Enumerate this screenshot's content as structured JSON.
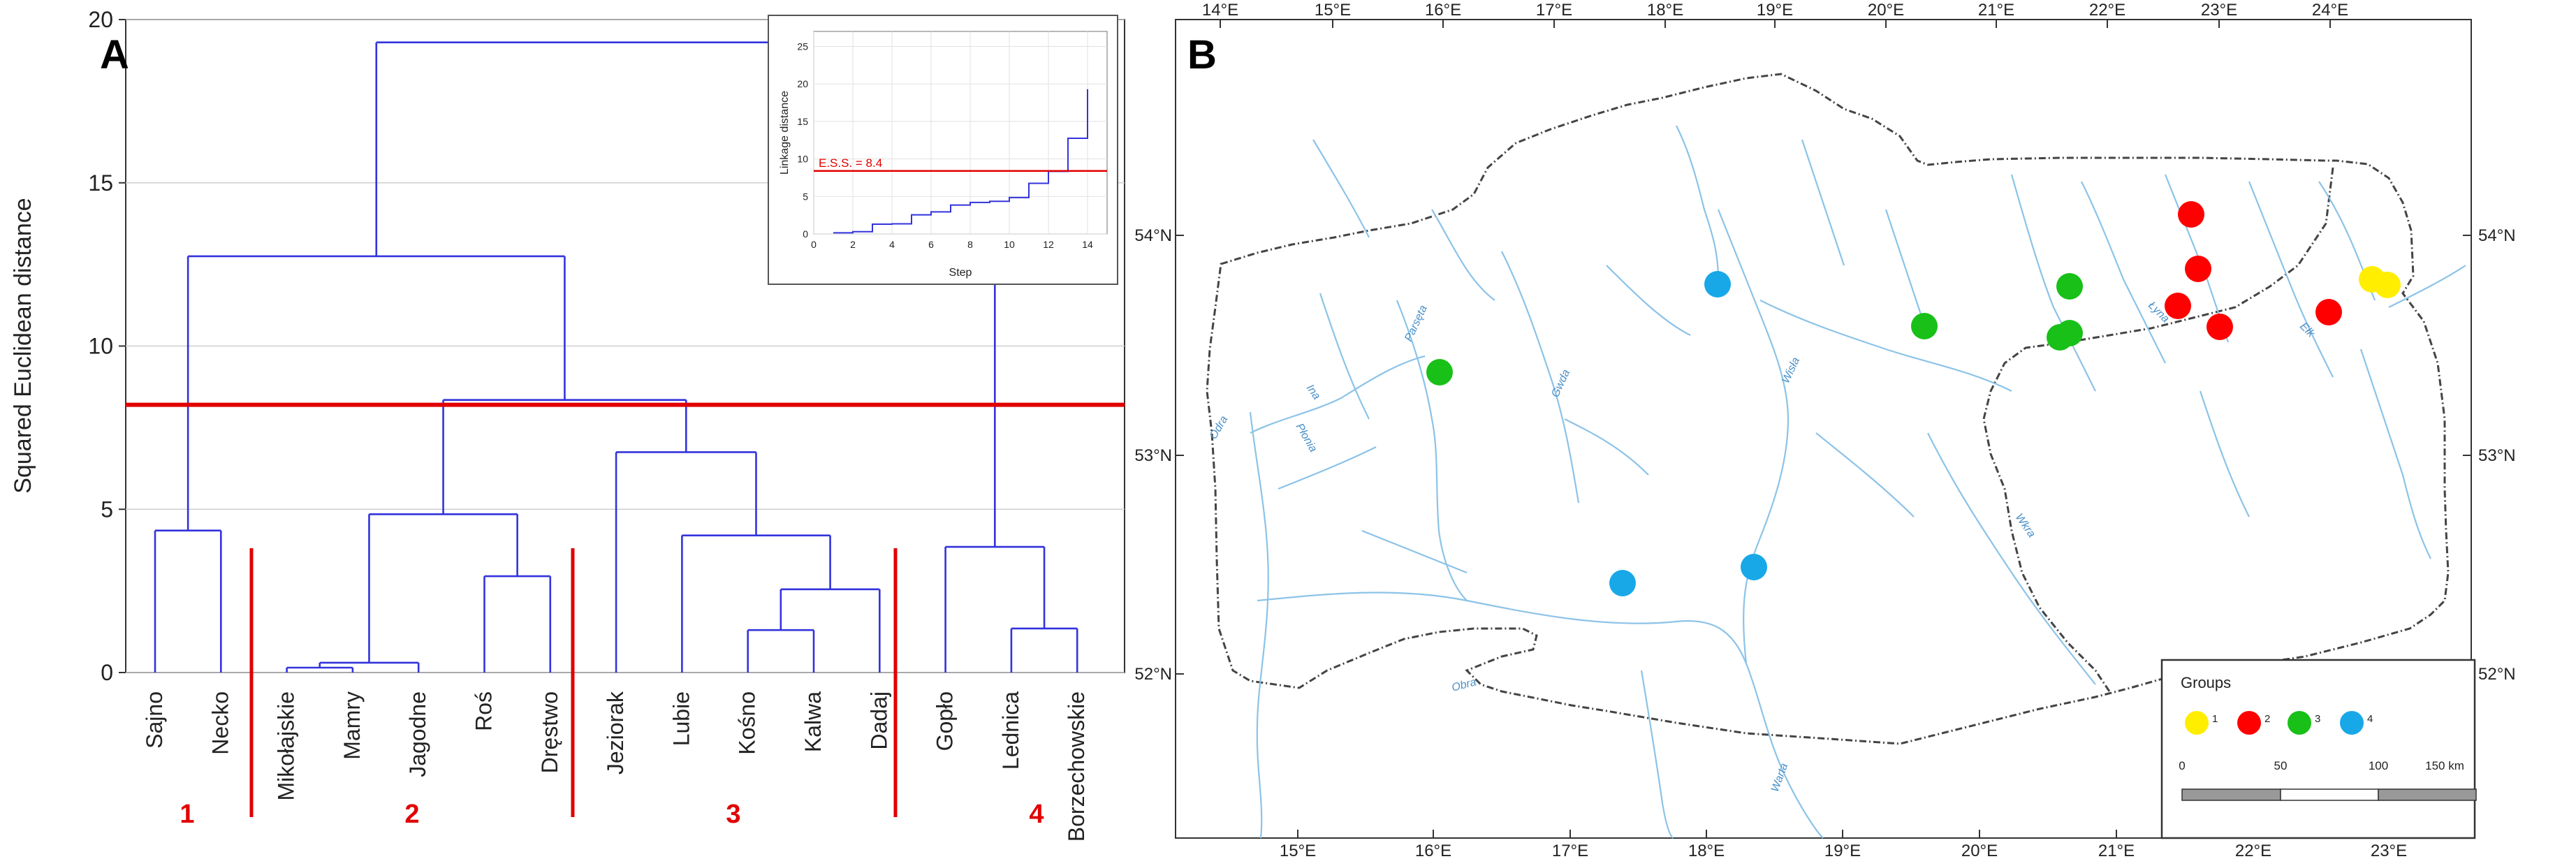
{
  "panel_a": {
    "letter": "A",
    "ylabel": "Squared Euclidean distance",
    "yticks": [
      "0",
      "5",
      "10",
      "15",
      "20"
    ],
    "leaves": [
      "Sajno",
      "Necko",
      "Mikołajskie",
      "Mamry",
      "Jagodne",
      "Roś",
      "Dręstwo",
      "Jeziorak",
      "Lubie",
      "Kośno",
      "Kalwa",
      "Dadaj",
      "Gopło",
      "Lednica",
      "Borzechowskie"
    ],
    "groups": [
      "1",
      "2",
      "3",
      "4"
    ],
    "cut_value": 8.2,
    "inset": {
      "ylabel": "Linkage distance",
      "xlabel": "Step",
      "ess_label": "E.S.S. = 8.4",
      "yticks": [
        "0",
        "5",
        "10",
        "15",
        "20",
        "25"
      ],
      "xticks": [
        "0",
        "2",
        "4",
        "6",
        "8",
        "10",
        "12",
        "14"
      ]
    }
  },
  "panel_b": {
    "letter": "B",
    "top_lon": [
      "14°E",
      "15°E",
      "16°E",
      "17°E",
      "18°E",
      "19°E",
      "20°E",
      "21°E",
      "22°E",
      "23°E",
      "24°E"
    ],
    "bottom_lon": [
      "15°E",
      "16°E",
      "17°E",
      "18°E",
      "19°E",
      "20°E",
      "21°E",
      "22°E",
      "23°E"
    ],
    "left_lat": [
      "54°N",
      "53°N",
      "52°N"
    ],
    "right_lat": [
      "54°N",
      "53°N",
      "52°N"
    ],
    "rivers": [
      "Parsęta",
      "Gwda",
      "Ina",
      "Płonia",
      "Odra",
      "Obra",
      "Warta",
      "Wisła",
      "Wkra",
      "Łyna",
      "Ełk"
    ],
    "legend": {
      "title": "Groups",
      "items": [
        {
          "label": "1",
          "color": "#ffee00"
        },
        {
          "label": "2",
          "color": "#ff0000"
        },
        {
          "label": "3",
          "color": "#18c018"
        },
        {
          "label": "4",
          "color": "#18a8e8"
        }
      ],
      "scale": [
        "0",
        "50",
        "100",
        "150 km"
      ]
    }
  },
  "colors": {
    "dendro": "#3333dd",
    "cut": "#e10000",
    "group1": "#ffee00",
    "group2": "#ff0000",
    "group3": "#18c018",
    "group4": "#18a8e8"
  }
}
